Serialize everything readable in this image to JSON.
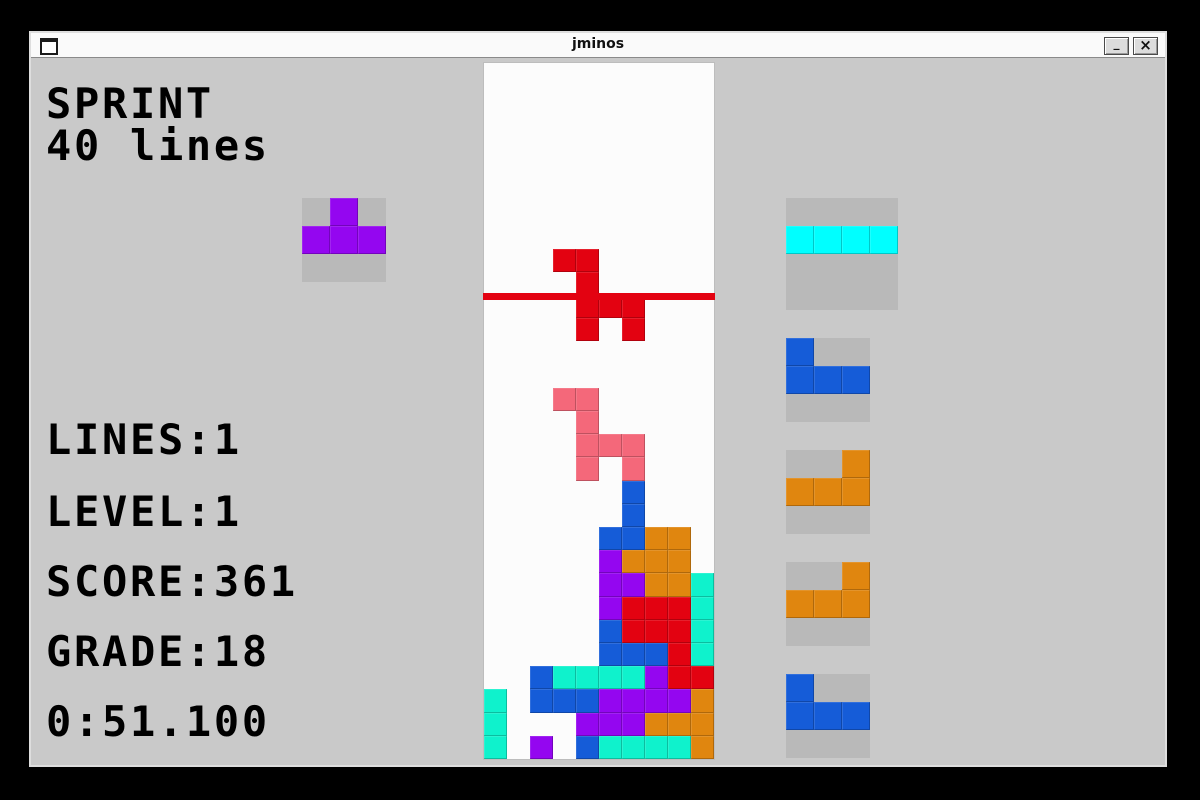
{
  "window": {
    "title": "jminos",
    "buttons": {
      "minimize": "_",
      "close": "×"
    }
  },
  "hud": {
    "mode": [
      "SPRINT",
      "40 lines"
    ],
    "stats": [
      "LINES:1",
      "LEVEL:1",
      "SCORE:361",
      "GRADE:18"
    ],
    "timer": "0:51.100"
  },
  "colors": {
    "background": "#c9c9c9",
    "field": "#fcfcfc",
    "box": "#b9b9b9",
    "red": "#e30211",
    "pink": "#f4687a",
    "purple": "#9406f0",
    "blue": "#155cd8",
    "orange": "#e0860f",
    "cyan": "#00ffff",
    "teal": "#0ff2cc"
  },
  "board": {
    "cols": 10,
    "rows": 30,
    "active_piece_color": "red",
    "ghost_piece_color": "pink",
    "clear_line_boundary_row": 10,
    "cells": [
      [
        3,
        8,
        "red"
      ],
      [
        4,
        8,
        "red"
      ],
      [
        4,
        9,
        "red"
      ],
      [
        4,
        10,
        "red"
      ],
      [
        5,
        10,
        "red"
      ],
      [
        6,
        10,
        "red"
      ],
      [
        4,
        11,
        "red"
      ],
      [
        6,
        11,
        "red"
      ],
      [
        3,
        14,
        "pink"
      ],
      [
        4,
        14,
        "pink"
      ],
      [
        4,
        15,
        "pink"
      ],
      [
        4,
        16,
        "pink"
      ],
      [
        5,
        16,
        "pink"
      ],
      [
        6,
        16,
        "pink"
      ],
      [
        4,
        17,
        "pink"
      ],
      [
        6,
        17,
        "pink"
      ],
      [
        6,
        18,
        "blue"
      ],
      [
        6,
        19,
        "blue"
      ],
      [
        5,
        20,
        "blue"
      ],
      [
        6,
        20,
        "blue"
      ],
      [
        7,
        20,
        "orange"
      ],
      [
        8,
        20,
        "orange"
      ],
      [
        5,
        21,
        "purple"
      ],
      [
        6,
        21,
        "orange"
      ],
      [
        7,
        21,
        "orange"
      ],
      [
        8,
        21,
        "orange"
      ],
      [
        5,
        22,
        "purple"
      ],
      [
        6,
        22,
        "purple"
      ],
      [
        7,
        22,
        "orange"
      ],
      [
        8,
        22,
        "orange"
      ],
      [
        9,
        22,
        "teal"
      ],
      [
        5,
        23,
        "purple"
      ],
      [
        6,
        23,
        "red"
      ],
      [
        7,
        23,
        "red"
      ],
      [
        8,
        23,
        "red"
      ],
      [
        9,
        23,
        "teal"
      ],
      [
        5,
        24,
        "blue"
      ],
      [
        6,
        24,
        "red"
      ],
      [
        7,
        24,
        "red"
      ],
      [
        8,
        24,
        "red"
      ],
      [
        9,
        24,
        "teal"
      ],
      [
        5,
        25,
        "blue"
      ],
      [
        6,
        25,
        "blue"
      ],
      [
        7,
        25,
        "blue"
      ],
      [
        8,
        25,
        "red"
      ],
      [
        9,
        25,
        "teal"
      ],
      [
        2,
        26,
        "blue"
      ],
      [
        3,
        26,
        "teal"
      ],
      [
        4,
        26,
        "teal"
      ],
      [
        5,
        26,
        "teal"
      ],
      [
        6,
        26,
        "teal"
      ],
      [
        7,
        26,
        "purple"
      ],
      [
        8,
        26,
        "red"
      ],
      [
        9,
        26,
        "red"
      ],
      [
        0,
        27,
        "teal"
      ],
      [
        2,
        27,
        "blue"
      ],
      [
        3,
        27,
        "blue"
      ],
      [
        4,
        27,
        "blue"
      ],
      [
        5,
        27,
        "purple"
      ],
      [
        6,
        27,
        "purple"
      ],
      [
        7,
        27,
        "purple"
      ],
      [
        8,
        27,
        "purple"
      ],
      [
        9,
        27,
        "orange"
      ],
      [
        0,
        28,
        "teal"
      ],
      [
        4,
        28,
        "purple"
      ],
      [
        5,
        28,
        "purple"
      ],
      [
        6,
        28,
        "purple"
      ],
      [
        7,
        28,
        "orange"
      ],
      [
        8,
        28,
        "orange"
      ],
      [
        9,
        28,
        "orange"
      ],
      [
        0,
        29,
        "teal"
      ],
      [
        2,
        29,
        "purple"
      ],
      [
        4,
        29,
        "blue"
      ],
      [
        5,
        29,
        "teal"
      ],
      [
        6,
        29,
        "teal"
      ],
      [
        7,
        29,
        "teal"
      ],
      [
        8,
        29,
        "teal"
      ],
      [
        9,
        29,
        "orange"
      ]
    ]
  },
  "hold": {
    "piece": "T",
    "color": "purple",
    "grid": 3,
    "cells": [
      [
        1,
        0
      ],
      [
        0,
        1
      ],
      [
        1,
        1
      ],
      [
        2,
        1
      ]
    ]
  },
  "next": [
    {
      "piece": "I",
      "color": "cyan",
      "grid": 4,
      "cells": [
        [
          0,
          1
        ],
        [
          1,
          1
        ],
        [
          2,
          1
        ],
        [
          3,
          1
        ]
      ]
    },
    {
      "piece": "J",
      "color": "blue",
      "grid": 3,
      "cells": [
        [
          0,
          0
        ],
        [
          0,
          1
        ],
        [
          1,
          1
        ],
        [
          2,
          1
        ]
      ]
    },
    {
      "piece": "L",
      "color": "orange",
      "grid": 3,
      "cells": [
        [
          2,
          0
        ],
        [
          0,
          1
        ],
        [
          1,
          1
        ],
        [
          2,
          1
        ]
      ]
    },
    {
      "piece": "L",
      "color": "orange",
      "grid": 3,
      "cells": [
        [
          2,
          0
        ],
        [
          0,
          1
        ],
        [
          1,
          1
        ],
        [
          2,
          1
        ]
      ]
    },
    {
      "piece": "J",
      "color": "blue",
      "grid": 3,
      "cells": [
        [
          0,
          0
        ],
        [
          0,
          1
        ],
        [
          1,
          1
        ],
        [
          2,
          1
        ]
      ]
    }
  ]
}
